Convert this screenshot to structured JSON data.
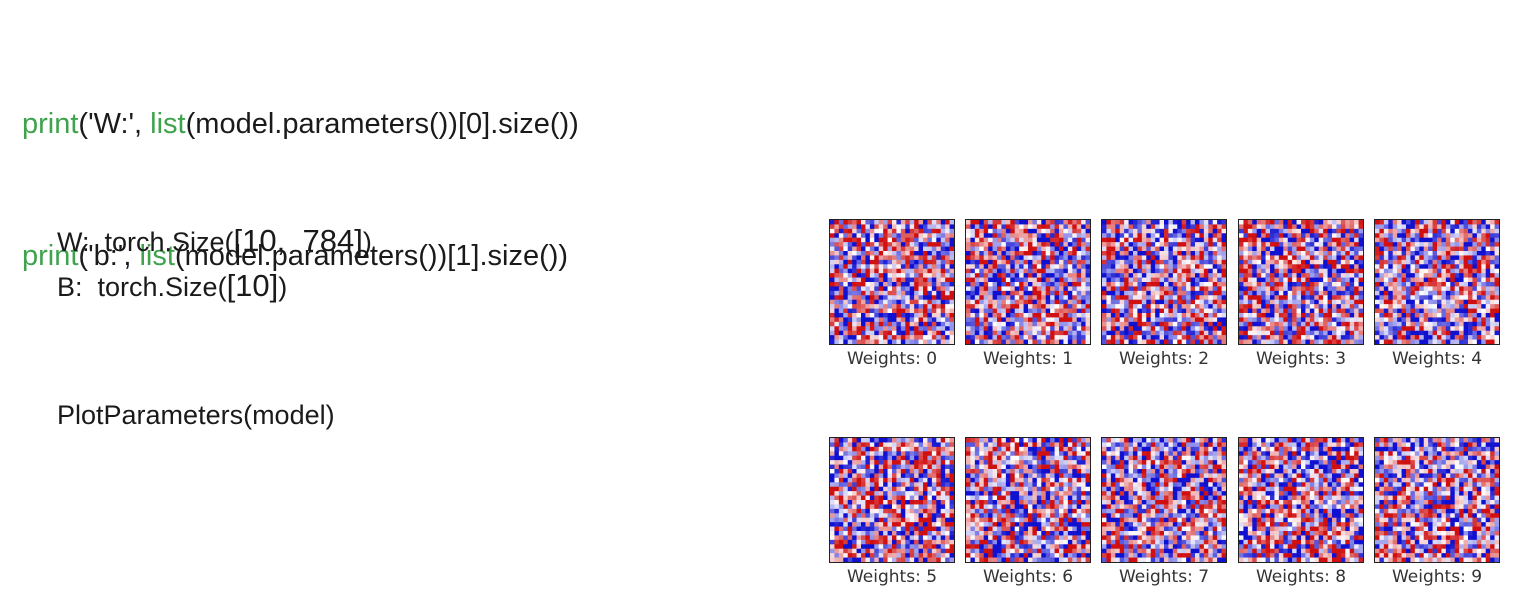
{
  "code": {
    "lines": [
      {
        "fn": "print",
        "pre": "('W:', ",
        "kw2": "list",
        "post": "(model.parameters())[0].size())"
      },
      {
        "fn": "print",
        "pre": "('b:', ",
        "kw2": "list",
        "post": "(model.parameters())[1].size())"
      }
    ],
    "keyword_color": "#3fa34d"
  },
  "output": {
    "w_line": {
      "label": "W:  torch.Size(",
      "value": "[10,  784]",
      "close": ")"
    },
    "b_line": {
      "label": "B:  torch.Size(",
      "value": "[10]",
      "close": ")"
    },
    "call": "PlotParameters(model)"
  },
  "weights_panels": [
    {
      "caption": "Weights: 0"
    },
    {
      "caption": "Weights: 1"
    },
    {
      "caption": "Weights: 2"
    },
    {
      "caption": "Weights: 3"
    },
    {
      "caption": "Weights: 4"
    },
    {
      "caption": "Weights: 5"
    },
    {
      "caption": "Weights: 6"
    },
    {
      "caption": "Weights: 7"
    },
    {
      "caption": "Weights: 8"
    },
    {
      "caption": "Weights: 9"
    }
  ],
  "heatmap": {
    "colormap": "seismic",
    "colors": {
      "negative": "#1010d0",
      "neutral": "#ffffff",
      "positive": "#d01010"
    }
  }
}
